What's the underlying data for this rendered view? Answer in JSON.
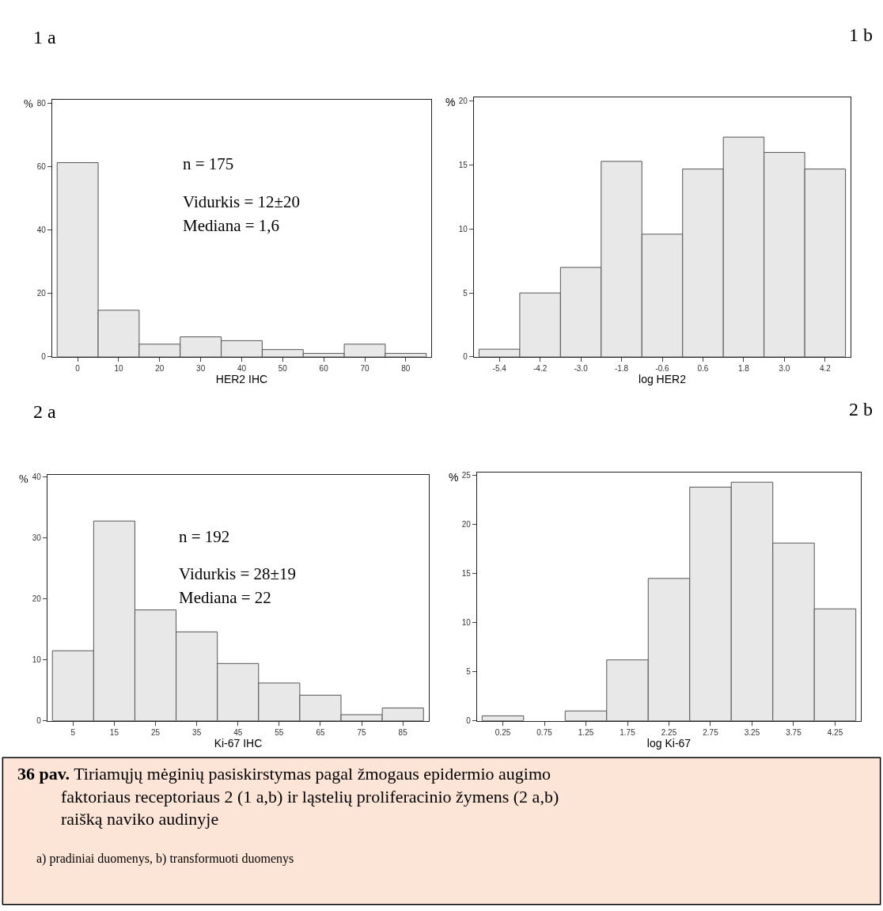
{
  "chart_data": [
    {
      "type": "histogram",
      "title": "1 a",
      "xlabel": "HER2 IHC",
      "ylabel": "%",
      "bins": [
        -5,
        5,
        15,
        25,
        35,
        45,
        55,
        65,
        75,
        85
      ],
      "values": [
        61.2,
        14.7,
        4.0,
        6.3,
        5.1,
        2.3,
        1.1,
        4.0,
        1.1
      ],
      "color": "#e8e8e8",
      "xlim": [
        -6.2,
        86.2
      ],
      "xticks": [
        0,
        10,
        20,
        30,
        40,
        50,
        60,
        70,
        80
      ],
      "ylim": [
        0,
        81
      ],
      "yticks": [
        0,
        20,
        40,
        60,
        80
      ],
      "annotations": [
        "n = 175",
        "Vidurkis = 12±20",
        "Mediana = 1,6"
      ]
    },
    {
      "type": "histogram",
      "title": "1 b",
      "xlabel": "log HER2",
      "ylabel": "%",
      "bins": [
        -6.0,
        -4.8,
        -3.6,
        -2.4,
        -1.2,
        0.0,
        1.2,
        2.4,
        3.6,
        4.8
      ],
      "values": [
        0.6,
        5.0,
        7.0,
        15.3,
        9.6,
        14.7,
        17.2,
        16.0,
        14.7
      ],
      "color": "#e8e8e8",
      "xlim": [
        -6.15,
        4.95
      ],
      "xticks": [
        {
          "value": -5.4,
          "label": "-5.4"
        },
        {
          "value": -4.2,
          "label": "-4.2"
        },
        {
          "value": -3.0,
          "label": "-3.0"
        },
        {
          "value": -1.8,
          "label": "-1.8"
        },
        {
          "value": -0.6,
          "label": "-0.6"
        },
        {
          "value": 0.6,
          "label": "0.6"
        },
        {
          "value": 1.8,
          "label": "1.8"
        },
        {
          "value": 3.0,
          "label": "3.0"
        },
        {
          "value": 4.2,
          "label": "4.2"
        }
      ],
      "ylim": [
        0,
        20.3
      ],
      "yticks": [
        0,
        5,
        10,
        15,
        20
      ]
    },
    {
      "type": "histogram",
      "title": "2 a",
      "xlabel": "Ki-67 IHC",
      "ylabel": "%",
      "bins": [
        0,
        10,
        20,
        30,
        40,
        50,
        60,
        70,
        80,
        90
      ],
      "values": [
        11.5,
        32.8,
        18.2,
        14.6,
        9.4,
        6.2,
        4.2,
        1.0,
        2.1
      ],
      "color": "#e8e8e8",
      "xlim": [
        -1.2,
        91.3
      ],
      "xticks": [
        5,
        15,
        25,
        35,
        45,
        55,
        65,
        75,
        85
      ],
      "ylim": [
        0,
        40.4
      ],
      "yticks": [
        0,
        10,
        20,
        30,
        40
      ],
      "annotations": [
        "n = 192",
        "Vidurkis = 28±19",
        "Mediana = 22"
      ]
    },
    {
      "type": "histogram",
      "title": "2 b",
      "xlabel": "log Ki-67",
      "ylabel": "%",
      "bins": [
        0.0,
        0.5,
        1.0,
        1.5,
        2.0,
        2.5,
        3.0,
        3.5,
        4.0,
        4.5
      ],
      "values": [
        0.5,
        0.0,
        1.0,
        6.2,
        14.5,
        23.8,
        24.3,
        18.1,
        11.4
      ],
      "color": "#e8e8e8",
      "xlim": [
        -0.06,
        4.56
      ],
      "xticks": [
        0.25,
        0.75,
        1.25,
        1.75,
        2.25,
        2.75,
        3.25,
        3.75,
        4.25
      ],
      "ylim": [
        0,
        25.3
      ],
      "yticks": [
        0,
        5,
        10,
        15,
        20,
        25
      ]
    },
    {
      "type": "other",
      "title": "36 pav. Tiriamųjų mėginių pasiskirstymas pagal žmogaus epidermio augimo faktoriaus receptoriaus 2 (1 a,b) ir ląstelių proliferacinio žymens (2 a,b) raišką naviko audinyje",
      "subtitle": "a) pradiniai duomenys, b) transformuoti duomenys",
      "color": "#fce4d6"
    }
  ]
}
